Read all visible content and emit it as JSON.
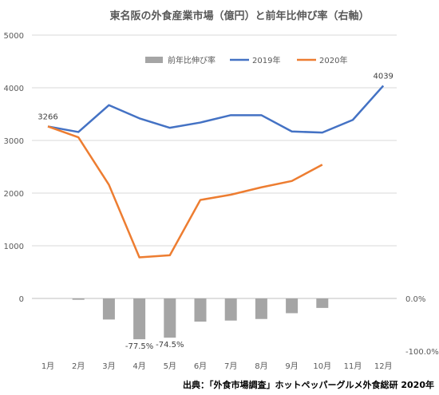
{
  "chart_data": {
    "type": "bar+line",
    "title": "東名阪の外食産業市場（億円）と前年比伸び率（右軸）",
    "categories": [
      "1月",
      "2月",
      "3月",
      "4月",
      "5月",
      "6月",
      "7月",
      "8月",
      "9月",
      "10月",
      "11月",
      "12月"
    ],
    "series": [
      {
        "name": "前年比伸び率",
        "type": "bar",
        "axis": "right",
        "color": "#a5a5a5",
        "values": [
          0.0,
          -2.5,
          -40.0,
          -77.5,
          -74.5,
          -44.0,
          -42.0,
          -39.0,
          -28.0,
          -18.0,
          null,
          null
        ]
      },
      {
        "name": "2019年",
        "type": "line",
        "axis": "left",
        "color": "#4472c4",
        "values": [
          3266,
          3160,
          3670,
          3420,
          3240,
          3340,
          3480,
          3480,
          3170,
          3150,
          3390,
          4039
        ]
      },
      {
        "name": "2020年",
        "type": "line",
        "axis": "left",
        "color": "#ed7d31",
        "values": [
          3266,
          3060,
          2160,
          780,
          820,
          1870,
          1970,
          2110,
          2230,
          2540,
          null,
          null
        ]
      }
    ],
    "left_axis": {
      "ticks": [
        0,
        1000,
        2000,
        3000,
        4000,
        5000
      ],
      "ylim": [
        0,
        5000
      ]
    },
    "right_axis": {
      "ticks_labels": [
        "0.0%",
        "-100.0%"
      ],
      "ylim": [
        -100,
        0
      ]
    },
    "data_labels": [
      {
        "series": "2019年",
        "index": 0,
        "text": "3266"
      },
      {
        "series": "2019年",
        "index": 11,
        "text": "4039"
      },
      {
        "series": "前年比伸び率",
        "index": 3,
        "text": "-77.5%"
      },
      {
        "series": "前年比伸び率",
        "index": 4,
        "text": "-74.5%"
      }
    ],
    "grid": true,
    "legend": "top-center"
  },
  "source": "出典：「外食市場調査」ホットペッパーグルメ外食総研 2020年"
}
